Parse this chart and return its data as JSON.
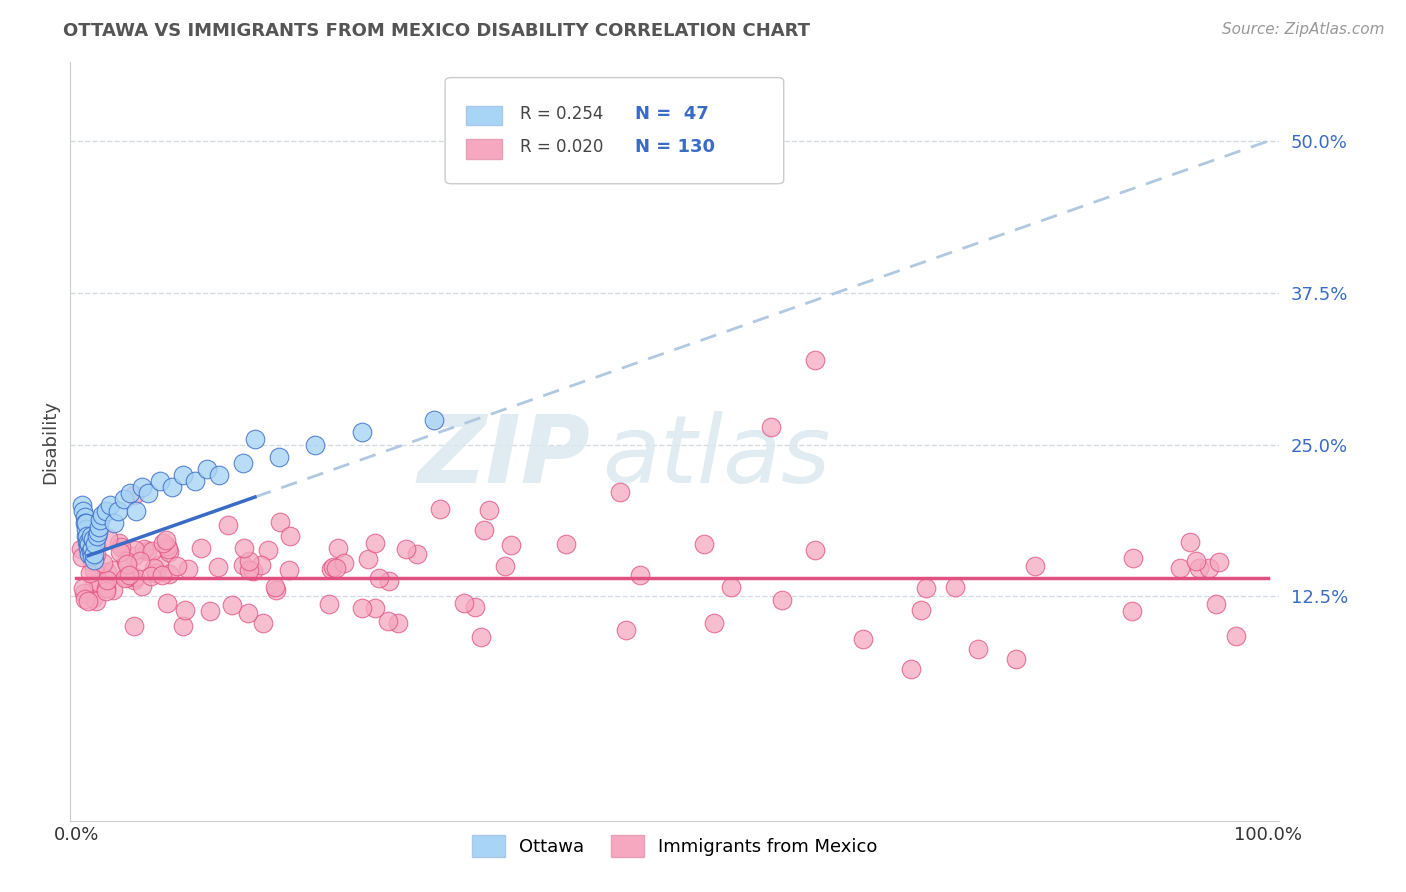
{
  "title": "OTTAWA VS IMMIGRANTS FROM MEXICO DISABILITY CORRELATION CHART",
  "source": "Source: ZipAtlas.com",
  "ylabel": "Disability",
  "color_blue": "#a8d4f5",
  "color_blue_line": "#3a6bc7",
  "color_pink": "#f5a8c0",
  "color_pink_line": "#e05080",
  "color_dashed": "#b0c8e0",
  "color_grid": "#d0d8e0",
  "legend_r1": "R = 0.254",
  "legend_n1": "N =  47",
  "legend_r2": "R = 0.020",
  "legend_n2": "N = 130",
  "watermark_zip": "ZIP",
  "watermark_atlas": "atlas",
  "trend_blue_x0": 0.0,
  "trend_blue_y0": 0.155,
  "trend_blue_x1": 1.0,
  "trend_blue_y1": 0.5,
  "trend_blue_solid_end": 0.15,
  "trend_pink_y": 0.14,
  "ytick_vals": [
    0.125,
    0.25,
    0.375,
    0.5
  ],
  "ytick_labels": [
    "12.5%",
    "25.0%",
    "37.5%",
    "50.0%"
  ],
  "ylim_min": -0.06,
  "ylim_max": 0.565,
  "xlim_min": -0.005,
  "xlim_max": 1.01
}
